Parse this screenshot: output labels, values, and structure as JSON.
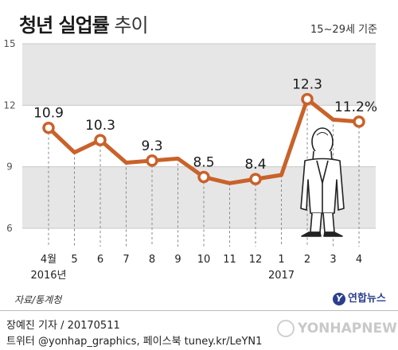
{
  "header": {
    "title_bold": "청년 실업률",
    "title_light": "추이",
    "subtitle": "15~29세 기준"
  },
  "chart_data": {
    "type": "line",
    "categories": [
      "4월",
      "5",
      "6",
      "7",
      "8",
      "9",
      "10",
      "11",
      "12",
      "1",
      "2",
      "3",
      "4"
    ],
    "year_labels": [
      {
        "index": 0,
        "text": "2016년"
      },
      {
        "index": 9,
        "text": "2017"
      }
    ],
    "values": [
      10.9,
      9.7,
      10.3,
      9.2,
      9.3,
      9.4,
      8.5,
      8.2,
      8.4,
      8.6,
      12.3,
      11.3,
      11.2
    ],
    "data_labels": [
      {
        "index": 0,
        "text": "10.9"
      },
      {
        "index": 2,
        "text": "10.3"
      },
      {
        "index": 4,
        "text": "9.3"
      },
      {
        "index": 6,
        "text": "8.5"
      },
      {
        "index": 8,
        "text": "8.4"
      },
      {
        "index": 10,
        "text": "12.3"
      },
      {
        "index": 12,
        "text": "11.2%"
      }
    ],
    "yticks": [
      "15",
      "12",
      "9",
      "6"
    ],
    "ylim": [
      6,
      15
    ],
    "line_color": "#c9622a",
    "band_color": "#e6e6e6"
  },
  "footer": {
    "source": "자료/통계청",
    "logo": "연합뉴스",
    "credit_line1": "장예진 기자 / 20170511",
    "credit_line2": "트위터 @yonhap_graphics, 페이스북 tuney.kr/LeYN1",
    "watermark": "YONHAPNEWS"
  }
}
